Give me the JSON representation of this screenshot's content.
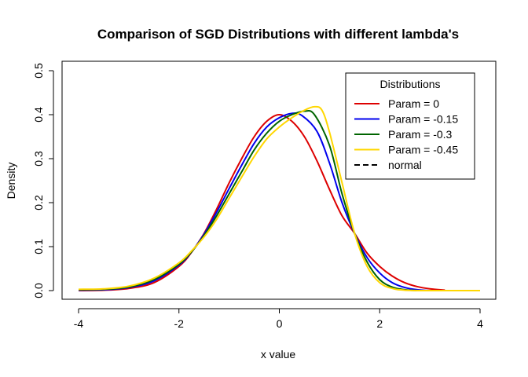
{
  "chart_data": {
    "type": "line",
    "title": "Comparison of SGD Distributions with different lambda's",
    "xlabel": "x value",
    "ylabel": "Density",
    "xlim": [
      -4,
      4
    ],
    "ylim": [
      0,
      0.5
    ],
    "xticks": [
      "-4",
      "-2",
      "0",
      "2",
      "4"
    ],
    "yticks": [
      "0.0",
      "0.1",
      "0.2",
      "0.3",
      "0.4",
      "0.5"
    ],
    "grid": false,
    "legend": {
      "title": "Distributions",
      "position": "top-right",
      "entries": [
        {
          "label": "Param = 0",
          "color": "#DD0000",
          "style": "solid"
        },
        {
          "label": "Param = -0.15",
          "color": "#0000EE",
          "style": "solid"
        },
        {
          "label": "Param = -0.3",
          "color": "#006400",
          "style": "solid"
        },
        {
          "label": "Param = -0.45",
          "color": "#FFD700",
          "style": "solid"
        },
        {
          "label": "normal",
          "color": "#000000",
          "style": "dashed"
        }
      ]
    },
    "series": [
      {
        "name": "Param = 0",
        "color": "#DD0000",
        "x": [
          -4.0,
          -3.5,
          -3.0,
          -2.5,
          -2.0,
          -1.75,
          -1.5,
          -1.25,
          -1.0,
          -0.75,
          -0.5,
          -0.25,
          0.0,
          0.25,
          0.5,
          0.75,
          1.0,
          1.25,
          1.5,
          1.75,
          2.0,
          2.25,
          2.5,
          2.75,
          3.0,
          3.3
        ],
        "y": [
          0.0,
          0.001,
          0.005,
          0.018,
          0.055,
          0.087,
          0.13,
          0.185,
          0.245,
          0.3,
          0.35,
          0.385,
          0.4,
          0.385,
          0.35,
          0.295,
          0.23,
          0.17,
          0.13,
          0.085,
          0.055,
          0.033,
          0.018,
          0.009,
          0.004,
          0.001
        ]
      },
      {
        "name": "Param = -0.15",
        "color": "#0000EE",
        "x": [
          -4.0,
          -3.5,
          -3.0,
          -2.5,
          -2.0,
          -1.75,
          -1.5,
          -1.25,
          -1.0,
          -0.75,
          -0.5,
          -0.25,
          0.0,
          0.25,
          0.45,
          0.75,
          1.0,
          1.25,
          1.5,
          1.75,
          2.0,
          2.25,
          2.5,
          2.75,
          3.0
        ],
        "y": [
          0.001,
          0.002,
          0.007,
          0.022,
          0.058,
          0.088,
          0.128,
          0.178,
          0.232,
          0.285,
          0.335,
          0.372,
          0.393,
          0.403,
          0.398,
          0.362,
          0.29,
          0.2,
          0.13,
          0.075,
          0.04,
          0.018,
          0.007,
          0.002,
          0.0
        ]
      },
      {
        "name": "Param = -0.3",
        "color": "#006400",
        "x": [
          -4.0,
          -3.5,
          -3.0,
          -2.5,
          -2.0,
          -1.75,
          -1.5,
          -1.25,
          -1.0,
          -0.75,
          -0.5,
          -0.25,
          0.0,
          0.25,
          0.5,
          0.7,
          1.0,
          1.25,
          1.5,
          1.75,
          2.0,
          2.25,
          2.5,
          2.75
        ],
        "y": [
          0.002,
          0.003,
          0.008,
          0.025,
          0.06,
          0.088,
          0.125,
          0.17,
          0.22,
          0.27,
          0.32,
          0.358,
          0.385,
          0.4,
          0.408,
          0.4,
          0.33,
          0.22,
          0.13,
          0.065,
          0.025,
          0.008,
          0.002,
          0.0
        ]
      },
      {
        "name": "Param = -0.45",
        "color": "#FFD700",
        "x": [
          -4.0,
          -3.5,
          -3.0,
          -2.5,
          -2.0,
          -1.75,
          -1.5,
          -1.25,
          -1.0,
          -0.75,
          -0.5,
          -0.25,
          0.0,
          0.25,
          0.5,
          0.7,
          0.85,
          1.0,
          1.25,
          1.5,
          1.75,
          2.0,
          2.25,
          2.5,
          3.0,
          3.5,
          4.0
        ],
        "y": [
          0.003,
          0.004,
          0.01,
          0.028,
          0.063,
          0.09,
          0.122,
          0.162,
          0.21,
          0.258,
          0.305,
          0.345,
          0.372,
          0.393,
          0.41,
          0.418,
          0.41,
          0.36,
          0.245,
          0.13,
          0.055,
          0.018,
          0.005,
          0.001,
          0.0,
          0.0,
          0.0
        ]
      }
    ]
  }
}
